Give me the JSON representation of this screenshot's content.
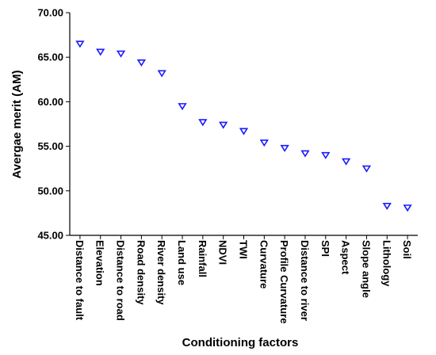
{
  "chart_data": {
    "type": "scatter",
    "xlabel": "Conditioning factors",
    "ylabel": "Avergae merit (AM)",
    "categories": [
      "Distance to fault",
      "Elevation",
      "Distance to road",
      "Road density",
      "River density",
      "Land use",
      "Rainfall",
      "NDVI",
      "TWI",
      "Curvature",
      "Profile Curvature",
      "Distance to river",
      "SPI",
      "Aspect",
      "Slope angle",
      "Lithology",
      "Soil"
    ],
    "values": [
      66.5,
      65.6,
      65.4,
      64.4,
      63.2,
      59.5,
      57.7,
      57.4,
      56.7,
      55.4,
      54.8,
      54.2,
      54.0,
      53.3,
      52.5,
      48.3,
      48.1
    ],
    "yticks": [
      "45.00",
      "50.00",
      "55.00",
      "60.00",
      "65.00",
      "70.00"
    ],
    "ylim": [
      45,
      70
    ],
    "grid": false,
    "legend": "none",
    "marker": "triangle-down",
    "marker_color": "#1a1aff",
    "axis_color": "#000000"
  }
}
